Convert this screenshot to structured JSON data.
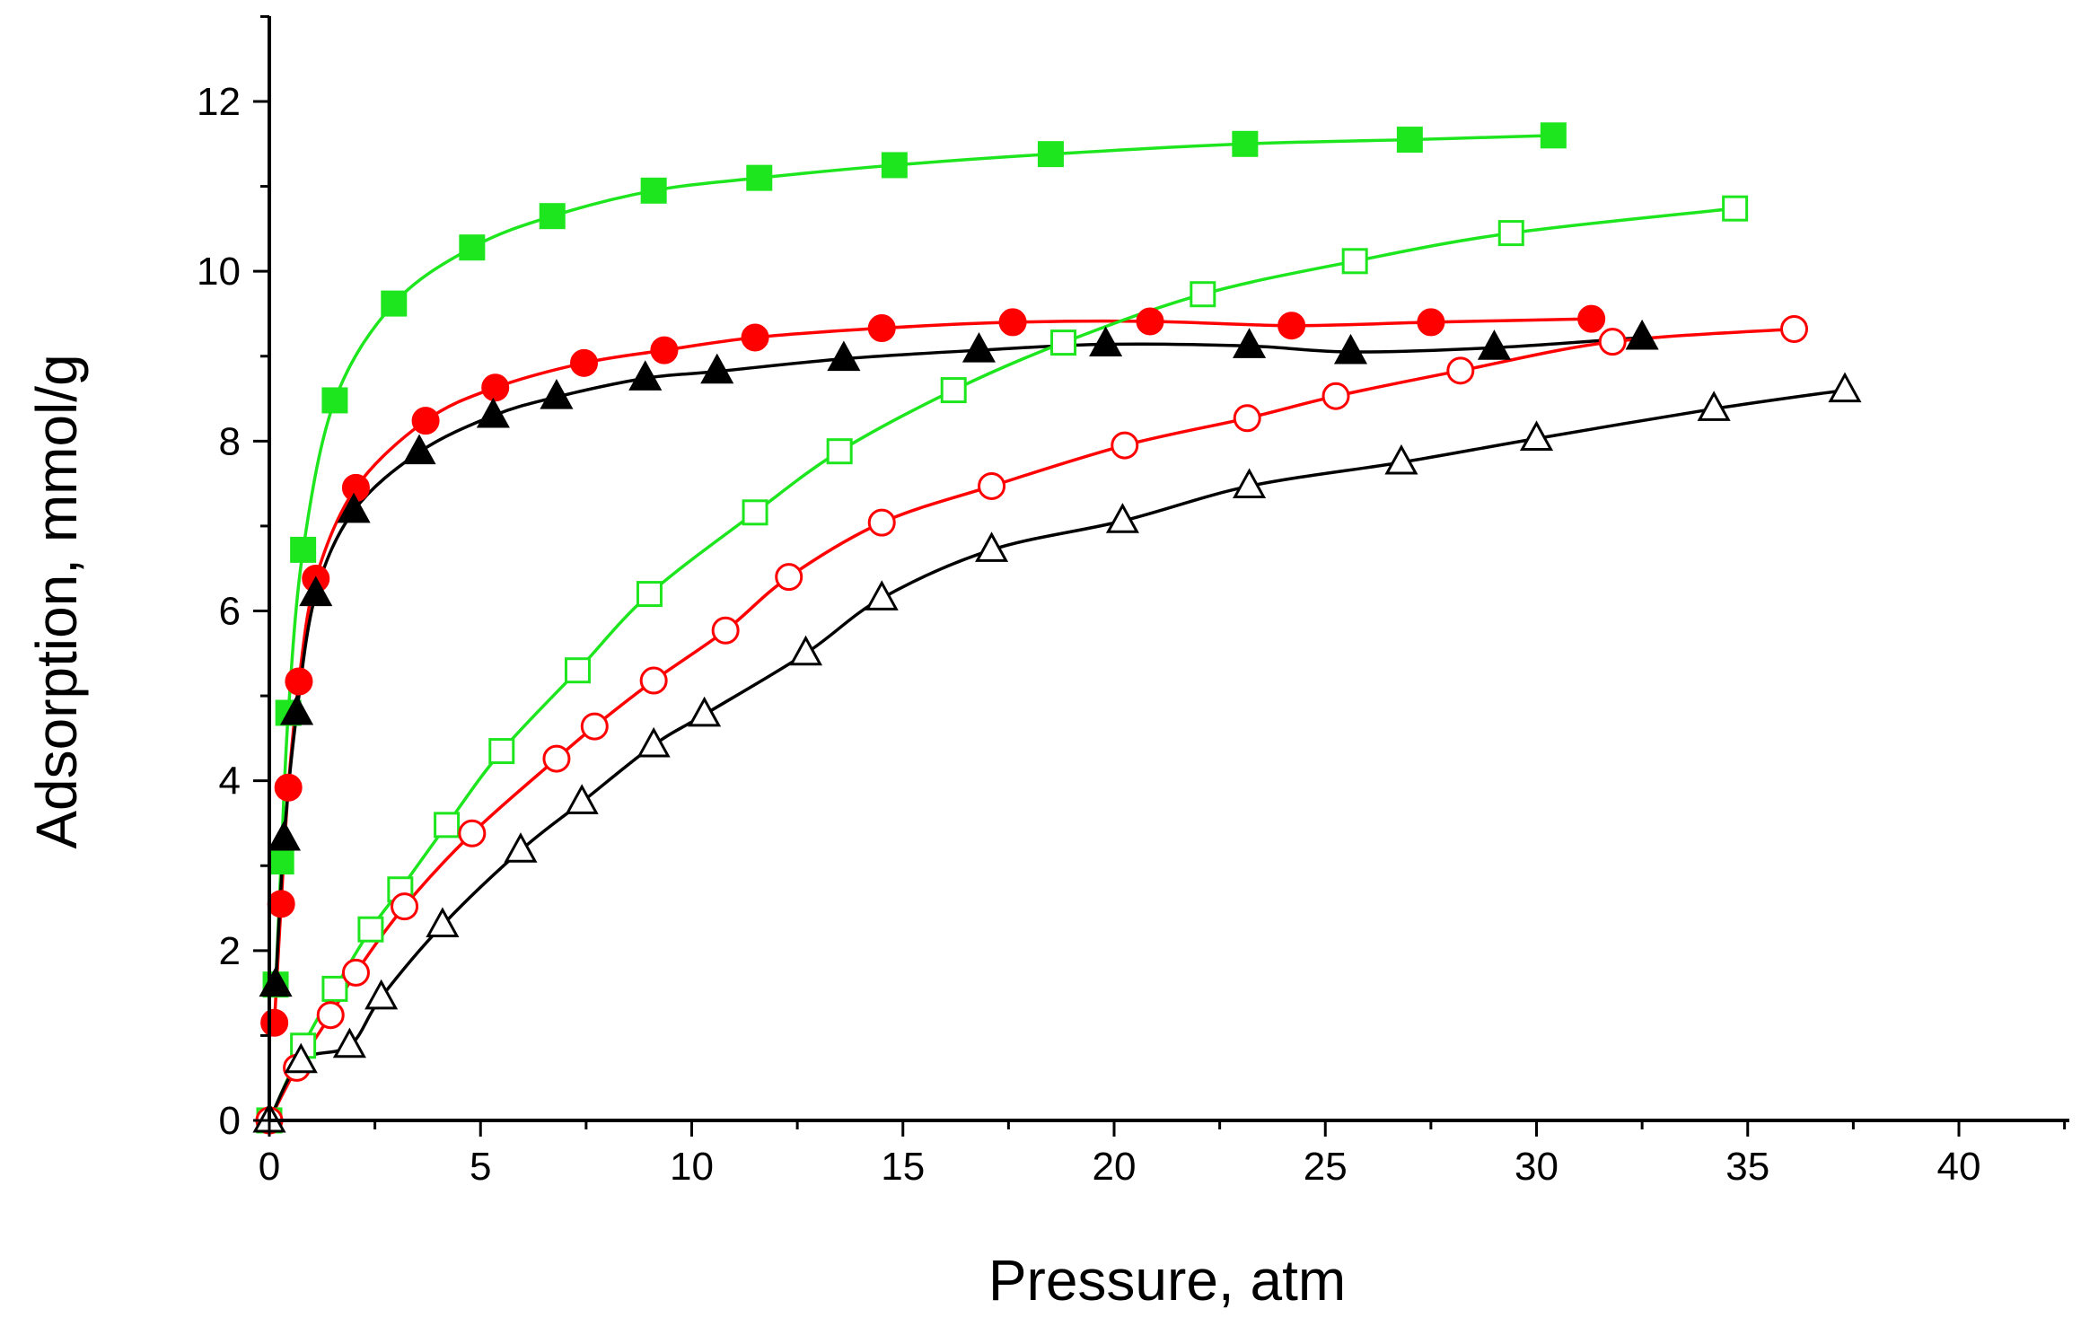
{
  "chart_data": {
    "type": "line",
    "title": "",
    "xlabel": "Pressure, atm",
    "ylabel": "Adsorption, mmol/g",
    "xlim": [
      0,
      42.5
    ],
    "ylim": [
      0,
      13
    ],
    "xticks": [
      0,
      5,
      10,
      15,
      20,
      25,
      30,
      35,
      40
    ],
    "yticks": [
      0,
      2,
      4,
      6,
      8,
      10,
      12
    ],
    "grid": false,
    "legend": "none",
    "series": [
      {
        "name": "green filled squares",
        "color": "#1ee61e",
        "marker": "square",
        "filled": true,
        "x": [
          0.15,
          0.28,
          0.45,
          0.8,
          1.55,
          2.95,
          4.8,
          6.7,
          9.1,
          11.6,
          14.8,
          18.5,
          23.1,
          27.0,
          30.4
        ],
        "y": [
          1.6,
          3.05,
          4.8,
          6.72,
          8.48,
          9.62,
          10.28,
          10.65,
          10.95,
          11.1,
          11.25,
          11.38,
          11.5,
          11.55,
          11.6
        ]
      },
      {
        "name": "red filled circles",
        "color": "#ff0000",
        "marker": "circle",
        "filled": true,
        "x": [
          0.12,
          0.28,
          0.45,
          0.7,
          1.1,
          2.05,
          3.7,
          5.35,
          7.45,
          9.35,
          11.5,
          14.5,
          17.6,
          20.85,
          24.2,
          27.5,
          31.3
        ],
        "y": [
          1.15,
          2.55,
          3.92,
          5.17,
          6.38,
          7.45,
          8.24,
          8.63,
          8.92,
          9.07,
          9.22,
          9.33,
          9.4,
          9.41,
          9.36,
          9.4,
          9.44
        ]
      },
      {
        "name": "black filled triangles",
        "color": "#000000",
        "marker": "triangle",
        "filled": true,
        "x": [
          0.15,
          0.35,
          0.65,
          1.1,
          2.0,
          3.55,
          5.3,
          6.8,
          8.9,
          10.6,
          13.6,
          16.8,
          19.8,
          23.2,
          25.6,
          29.0,
          32.5
        ],
        "y": [
          1.6,
          3.32,
          4.8,
          6.2,
          7.18,
          7.87,
          8.3,
          8.52,
          8.74,
          8.82,
          8.97,
          9.07,
          9.14,
          9.12,
          9.05,
          9.1,
          9.22
        ]
      },
      {
        "name": "green open squares",
        "color": "#1ee61e",
        "marker": "square",
        "filled": false,
        "x": [
          0.0,
          0.8,
          1.55,
          2.4,
          3.1,
          4.2,
          5.5,
          7.3,
          9.0,
          11.5,
          13.5,
          16.2,
          18.8,
          22.1,
          25.7,
          29.4,
          34.7
        ],
        "y": [
          0.0,
          0.88,
          1.55,
          2.25,
          2.72,
          3.48,
          4.35,
          5.3,
          6.2,
          7.16,
          7.88,
          8.6,
          9.16,
          9.73,
          10.12,
          10.45,
          10.74
        ]
      },
      {
        "name": "red open circles",
        "color": "#ff0000",
        "marker": "circle",
        "filled": false,
        "x": [
          0.0,
          0.65,
          1.45,
          2.05,
          3.2,
          4.8,
          6.8,
          7.7,
          9.1,
          10.8,
          12.3,
          14.5,
          17.1,
          20.25,
          23.15,
          25.25,
          28.2,
          31.8,
          36.1
        ],
        "y": [
          0.0,
          0.62,
          1.24,
          1.74,
          2.52,
          3.38,
          4.26,
          4.64,
          5.18,
          5.77,
          6.4,
          7.04,
          7.47,
          7.95,
          8.27,
          8.53,
          8.83,
          9.17,
          9.32
        ]
      },
      {
        "name": "black open triangles",
        "color": "#000000",
        "marker": "triangle",
        "filled": false,
        "x": [
          0.0,
          0.75,
          1.9,
          2.65,
          4.1,
          5.95,
          7.4,
          9.1,
          10.3,
          12.7,
          14.5,
          17.1,
          20.2,
          23.2,
          26.8,
          30.0,
          34.2,
          37.3
        ],
        "y": [
          0.0,
          0.7,
          0.88,
          1.45,
          2.3,
          3.18,
          3.75,
          4.42,
          4.78,
          5.5,
          6.15,
          6.72,
          7.06,
          7.47,
          7.75,
          8.03,
          8.38,
          8.6
        ]
      }
    ]
  }
}
